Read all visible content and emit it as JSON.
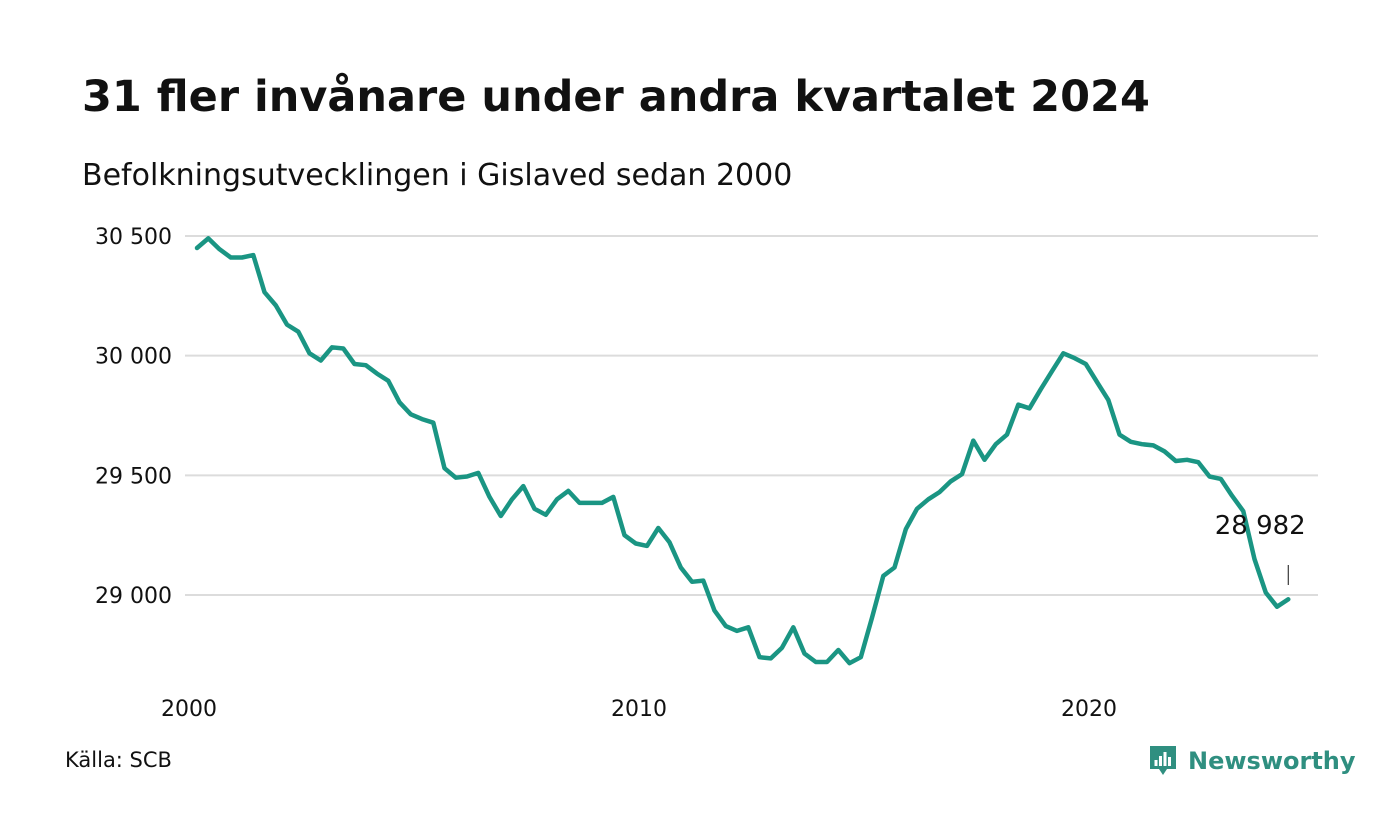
{
  "header": {
    "title": "31 fler invånare under andra kvartalet 2024",
    "subtitle": "Befolkningsutvecklingen i Gislaved sedan 2000"
  },
  "footer": {
    "source": "Källa: SCB",
    "brand": "Newsworthy",
    "brand_icon": "newsworthy-logo-icon"
  },
  "colors": {
    "line": "#1a9583",
    "grid": "#dcdcdc",
    "text": "#111111",
    "brand": "#2f8f80"
  },
  "chart_data": {
    "type": "line",
    "title": "31 fler invånare under andra kvartalet 2024",
    "subtitle": "Befolkningsutvecklingen i Gislaved sedan 2000",
    "xlabel": "",
    "ylabel": "",
    "x_ticks": [
      "2000",
      "2010",
      "2020"
    ],
    "y_ticks": [
      "30 500",
      "30 000",
      "29 500",
      "29 000"
    ],
    "ylim": [
      28710,
      30510
    ],
    "grid": true,
    "legend": "none",
    "annotation": {
      "label": "28 982",
      "date": "2024 Q2"
    },
    "series": [
      {
        "x": [
          "2000 Q1",
          "2000 Q2",
          "2000 Q3",
          "2000 Q4",
          "2001 Q1",
          "2001 Q2",
          "2001 Q3",
          "2001 Q4",
          "2002 Q1",
          "2002 Q2",
          "2002 Q3",
          "2002 Q4",
          "2003 Q1",
          "2003 Q2",
          "2003 Q3",
          "2003 Q4",
          "2004 Q1",
          "2004 Q2",
          "2004 Q3",
          "2004 Q4",
          "2005 Q1",
          "2005 Q2",
          "2005 Q3",
          "2005 Q4",
          "2006 Q1",
          "2006 Q2",
          "2006 Q3",
          "2006 Q4",
          "2007 Q1",
          "2007 Q2",
          "2007 Q3",
          "2007 Q4",
          "2008 Q1",
          "2008 Q2",
          "2008 Q3",
          "2008 Q4",
          "2009 Q1",
          "2009 Q2",
          "2009 Q3",
          "2009 Q4",
          "2010 Q1",
          "2010 Q2",
          "2010 Q3",
          "2010 Q4",
          "2011 Q1",
          "2011 Q2",
          "2011 Q3",
          "2011 Q4",
          "2012 Q1",
          "2012 Q2",
          "2012 Q3",
          "2012 Q4",
          "2013 Q1",
          "2013 Q2",
          "2013 Q3",
          "2013 Q4",
          "2014 Q1",
          "2014 Q2",
          "2014 Q3",
          "2014 Q4",
          "2015 Q1",
          "2015 Q2",
          "2015 Q3",
          "2015 Q4",
          "2016 Q1",
          "2016 Q2",
          "2016 Q3",
          "2016 Q4",
          "2017 Q1",
          "2017 Q2",
          "2017 Q3",
          "2017 Q4",
          "2018 Q1",
          "2018 Q2",
          "2018 Q3",
          "2018 Q4",
          "2019 Q1",
          "2019 Q2",
          "2019 Q3",
          "2019 Q4",
          "2020 Q1",
          "2020 Q2",
          "2020 Q3",
          "2020 Q4",
          "2021 Q1",
          "2021 Q2",
          "2021 Q3",
          "2021 Q4",
          "2022 Q1",
          "2022 Q2",
          "2022 Q3",
          "2022 Q4",
          "2023 Q1",
          "2023 Q2",
          "2023 Q3",
          "2023 Q4",
          "2024 Q1",
          "2024 Q2"
        ],
        "values": [
          30450,
          30490,
          30445,
          30410,
          30410,
          30420,
          30265,
          30210,
          30130,
          30100,
          30010,
          29980,
          30035,
          30030,
          29965,
          29960,
          29925,
          29895,
          29805,
          29755,
          29735,
          29720,
          29530,
          29490,
          29495,
          29510,
          29410,
          29330,
          29400,
          29455,
          29360,
          29335,
          29400,
          29435,
          29385,
          29385,
          29385,
          29410,
          29250,
          29215,
          29205,
          29280,
          29220,
          29115,
          29055,
          29060,
          28935,
          28870,
          28850,
          28865,
          28740,
          28735,
          28780,
          28865,
          28755,
          28720,
          28720,
          28770,
          28715,
          28740,
          28905,
          29080,
          29115,
          29275,
          29360,
          29400,
          29430,
          29475,
          29505,
          29645,
          29565,
          29630,
          29670,
          29795,
          29780,
          29860,
          29935,
          30010,
          29990,
          29965,
          29890,
          29815,
          29670,
          29640,
          29630,
          29625,
          29600,
          29560,
          29565,
          29555,
          29495,
          29485,
          29415,
          29350,
          29150,
          29010,
          28951,
          28982
        ]
      }
    ]
  }
}
